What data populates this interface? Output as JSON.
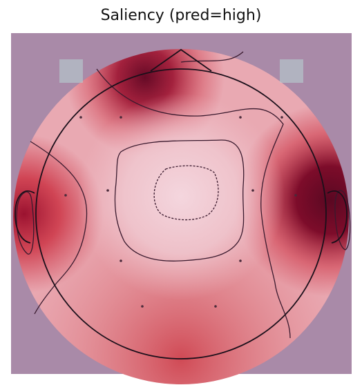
{
  "chart_data": {
    "type": "heatmap",
    "subtype": "eeg-topomap",
    "title": "Saliency (pred=high)",
    "background_color": "#a98aa8",
    "colormap": [
      "#f3d1d9",
      "#e48a93",
      "#cc3344",
      "#9b1230",
      "#650a26"
    ],
    "contour_color": "#3a1a2e",
    "head_outline_color": "#1a0f1a",
    "sensors_shown": true,
    "contour_levels": 4,
    "regions": [
      {
        "name": "frontal-top",
        "level": 0.85
      },
      {
        "name": "left-temporal",
        "level": 0.8
      },
      {
        "name": "right-temporal",
        "level": 1.0
      },
      {
        "name": "center",
        "level": 0.05
      },
      {
        "name": "lower-right",
        "level": 0.55
      },
      {
        "name": "lower-left",
        "level": 0.55
      },
      {
        "name": "occipital",
        "level": 0.45
      }
    ]
  }
}
